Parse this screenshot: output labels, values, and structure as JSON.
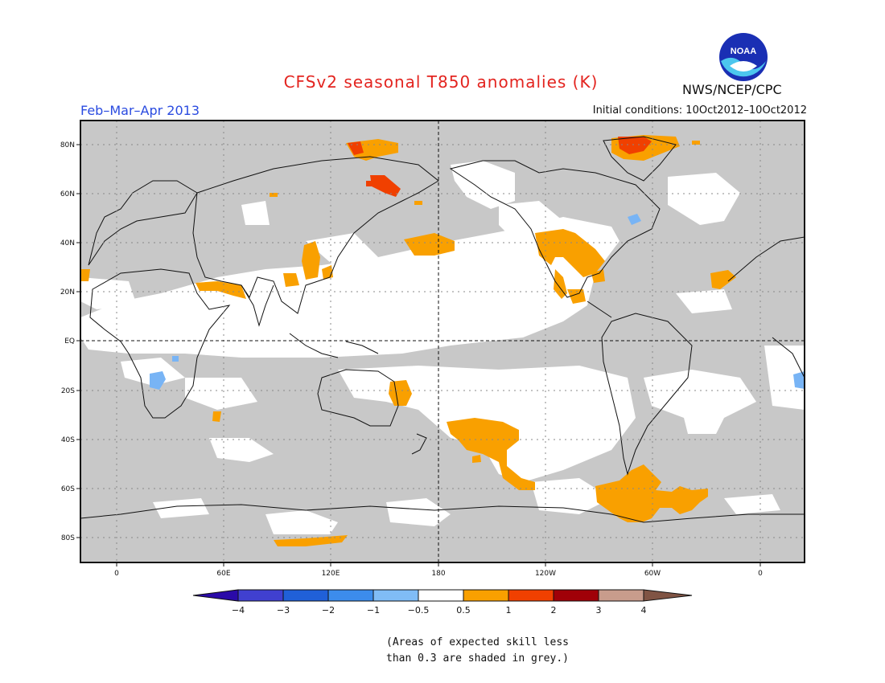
{
  "header": {
    "title": "CFSv2 seasonal T850 anomalies (K)",
    "season": "Feb–Mar–Apr 2013",
    "initial_conditions": "Initial conditions: 10Oct2012–10Oct2012",
    "organization": "NWS/NCEP/CPC",
    "logo_text": "NOAA"
  },
  "map": {
    "projection": "equirectangular",
    "lon_range": [
      -20,
      380
    ],
    "lat_range": [
      -90,
      90
    ],
    "lat_ticks": [
      "80N",
      "60N",
      "40N",
      "20N",
      "EQ",
      "20S",
      "40S",
      "60S",
      "80S"
    ],
    "lon_ticks": [
      "0",
      "60E",
      "120E",
      "180",
      "120W",
      "60W",
      "0"
    ],
    "grey_meaning": "low skill",
    "colors": {
      "grey": "#c8c8c8",
      "white": "#ffffff",
      "orange": "#f9a000",
      "red_orange": "#f04000",
      "light_blue": "#78b4f5"
    }
  },
  "colorbar": {
    "labels": [
      "−4",
      "−3",
      "−2",
      "−1",
      "−0.5",
      "0.5",
      "1",
      "2",
      "3",
      "4"
    ],
    "colors": [
      "#2a0aa8",
      "#4040d0",
      "#2060d8",
      "#3c8cec",
      "#80bcf6",
      "#ffffff",
      "#f9a000",
      "#f04000",
      "#a00008",
      "#c89c8c",
      "#805444"
    ]
  },
  "footnote": {
    "line1": "(Areas of expected skill less",
    "line2": "than 0.3 are shaded in grey.)"
  }
}
